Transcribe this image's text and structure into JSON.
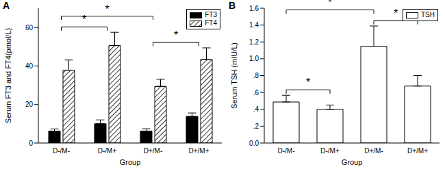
{
  "chart_data": [
    {
      "type": "bar",
      "title": "A",
      "x_label": "Group",
      "y_label": "Serum FT3 and FT4(pmol/L)",
      "categories": [
        "D-/M-",
        "D-/M+",
        "D+/M-",
        "D+/M+"
      ],
      "series": [
        {
          "name": "FT3",
          "color": "#000000",
          "values": [
            6.2,
            10,
            6.2,
            13.8
          ],
          "errors": [
            1.1,
            2.0,
            1.2,
            1.8
          ]
        },
        {
          "name": "FT4",
          "color": "#000000",
          "line_style": "hatched",
          "values": [
            37.8,
            50.6,
            29.4,
            43.4
          ],
          "errors": [
            5.3,
            6.9,
            3.7,
            6.0
          ]
        }
      ],
      "ylim": [
        0,
        70
      ],
      "yticks": [
        0,
        20,
        40,
        60
      ],
      "legend": "upper right",
      "annotations": [
        {
          "text": "*",
          "from": "D-/M-",
          "to": "D-/M+"
        },
        {
          "text": "*",
          "from": "D-/M-",
          "to": "D+/M-"
        },
        {
          "text": "*",
          "from": "D+/M-",
          "to": "D+/M+"
        }
      ]
    },
    {
      "type": "bar",
      "title": "B",
      "x_label": "Group",
      "y_label": "Serum TSH (mIU/L)",
      "categories": [
        "D-/M-",
        "D-/M+",
        "D+/M-",
        "D+/M+"
      ],
      "series": [
        {
          "name": "TSH",
          "color": "#ffffff",
          "values": [
            0.487,
            0.4,
            1.149,
            0.676
          ],
          "errors": [
            0.08,
            0.05,
            0.24,
            0.124
          ]
        }
      ],
      "ylim": [
        0,
        1.6
      ],
      "yticks": [
        {
          "value": 0,
          "label": "0.0"
        },
        {
          "value": 0.2,
          "label": ".2"
        },
        {
          "value": 0.4,
          "label": ".4"
        },
        {
          "value": 0.6,
          "label": ".6"
        },
        {
          "value": 0.8,
          "label": ".8"
        },
        {
          "value": 1,
          "label": "1.0"
        },
        1.2,
        1.4,
        1.6
      ],
      "legend": "upper right",
      "annotations": [
        {
          "text": "*",
          "from": "D-/M-",
          "to": "D-/M+"
        },
        {
          "text": "*",
          "from": "D-/M-",
          "to": "D+/M-"
        },
        {
          "text": "*",
          "from": "D+/M-",
          "to": "D+/M+"
        }
      ]
    }
  ]
}
